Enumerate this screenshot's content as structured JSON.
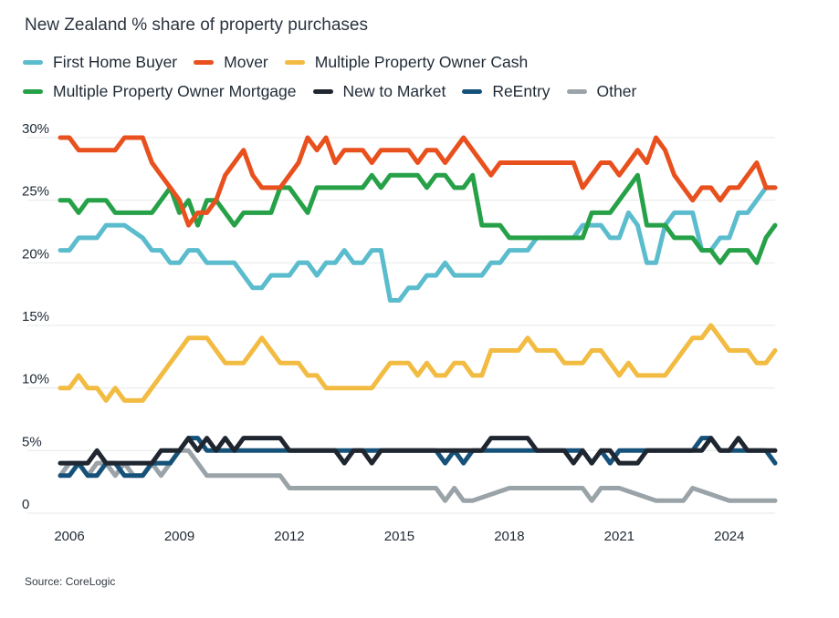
{
  "title": "New Zealand % share of property purchases",
  "source": "Source: CoreLogic",
  "chart_data": {
    "type": "line",
    "title": "New Zealand % share of property purchases",
    "xlabel": "",
    "ylabel": "",
    "x_range": [
      2005.75,
      2025.25
    ],
    "ylim": [
      0,
      30
    ],
    "yticks": [
      0,
      5,
      10,
      15,
      20,
      25,
      30
    ],
    "ytick_labels": [
      "0",
      "5%",
      "10%",
      "15%",
      "20%",
      "25%",
      "30%"
    ],
    "xticks": [
      2006,
      2009,
      2012,
      2015,
      2018,
      2021,
      2024
    ],
    "xtick_labels": [
      "2006",
      "2009",
      "2012",
      "2015",
      "2018",
      "2021",
      "2024"
    ],
    "grid": "horizontal",
    "legend_position": "top-left",
    "series": [
      {
        "name": "First Home Buyer",
        "color": "#5bbccd",
        "x": [
          2005.75,
          2006,
          2006.25,
          2006.75,
          2007,
          2007.5,
          2008,
          2008.25,
          2008.5,
          2008.75,
          2009,
          2009.25,
          2009.5,
          2009.75,
          2010,
          2010.5,
          2011,
          2011.25,
          2011.5,
          2011.75,
          2012,
          2012.25,
          2012.5,
          2012.75,
          2013,
          2013.25,
          2013.5,
          2013.75,
          2014,
          2014.25,
          2014.5,
          2014.75,
          2015,
          2015.25,
          2015.5,
          2015.75,
          2016,
          2016.25,
          2016.5,
          2016.75,
          2017,
          2017.25,
          2017.5,
          2017.75,
          2018,
          2018.25,
          2018.5,
          2018.75,
          2019,
          2019.25,
          2019.5,
          2019.75,
          2020,
          2020.25,
          2020.5,
          2020.75,
          2021,
          2021.25,
          2021.5,
          2021.75,
          2022,
          2022.25,
          2022.5,
          2022.75,
          2023,
          2023.25,
          2023.5,
          2023.75,
          2024,
          2024.25,
          2024.5,
          2024.75,
          2025,
          2025.25
        ],
        "values": [
          21,
          21,
          22,
          22,
          23,
          23,
          22,
          21,
          21,
          20,
          20,
          21,
          21,
          20,
          20,
          20,
          18,
          18,
          19,
          19,
          19,
          20,
          20,
          19,
          20,
          20,
          21,
          20,
          20,
          21,
          21,
          17,
          17,
          18,
          18,
          19,
          19,
          20,
          19,
          19,
          19,
          19,
          20,
          20,
          21,
          21,
          21,
          22,
          22,
          22,
          22,
          22,
          23,
          23,
          23,
          22,
          22,
          24,
          23,
          20,
          20,
          23,
          24,
          24,
          24,
          21,
          21,
          22,
          22,
          24,
          24,
          25,
          26,
          26
        ]
      },
      {
        "name": "Mover",
        "color": "#e8501e",
        "x": [
          2005.75,
          2006,
          2006.25,
          2006.5,
          2006.75,
          2007,
          2007.25,
          2007.5,
          2007.75,
          2008,
          2008.25,
          2008.5,
          2008.75,
          2009,
          2009.25,
          2009.5,
          2009.75,
          2010,
          2010.25,
          2010.5,
          2010.75,
          2011,
          2011.25,
          2011.5,
          2011.75,
          2012,
          2012.25,
          2012.5,
          2012.75,
          2013,
          2013.25,
          2013.5,
          2013.75,
          2014,
          2014.25,
          2014.5,
          2014.75,
          2015,
          2015.25,
          2015.5,
          2015.75,
          2016,
          2016.25,
          2016.5,
          2016.75,
          2017,
          2017.25,
          2017.5,
          2017.75,
          2018,
          2018.25,
          2018.5,
          2018.75,
          2019,
          2019.25,
          2019.5,
          2019.75,
          2020,
          2020.25,
          2020.5,
          2020.75,
          2021,
          2021.25,
          2021.5,
          2021.75,
          2022,
          2022.25,
          2022.5,
          2022.75,
          2023,
          2023.25,
          2023.5,
          2023.75,
          2024,
          2024.25,
          2024.5,
          2024.75,
          2025,
          2025.25
        ],
        "values": [
          30,
          30,
          29,
          29,
          29,
          29,
          29,
          30,
          30,
          30,
          28,
          27,
          26,
          25,
          23,
          24,
          24,
          25,
          27,
          28,
          29,
          27,
          26,
          26,
          26,
          27,
          28,
          30,
          29,
          30,
          28,
          29,
          29,
          29,
          28,
          29,
          29,
          29,
          29,
          28,
          29,
          29,
          28,
          29,
          30,
          29,
          28,
          27,
          28,
          28,
          28,
          28,
          28,
          28,
          28,
          28,
          28,
          26,
          27,
          28,
          28,
          27,
          28,
          29,
          28,
          30,
          29,
          27,
          26,
          25,
          26,
          26,
          25,
          26,
          26,
          27,
          28,
          26,
          26
        ]
      },
      {
        "name": "Multiple Property Owner Cash",
        "color": "#f2bb42",
        "x": [
          2005.75,
          2006,
          2006.25,
          2006.5,
          2006.75,
          2007,
          2007.25,
          2007.5,
          2007.75,
          2008,
          2008.5,
          2009,
          2009.25,
          2009.5,
          2009.75,
          2010,
          2010.25,
          2010.5,
          2010.75,
          2011,
          2011.25,
          2011.5,
          2011.75,
          2012,
          2012.25,
          2012.5,
          2012.75,
          2013,
          2013.5,
          2014,
          2014.25,
          2014.5,
          2014.75,
          2015,
          2015.25,
          2015.5,
          2015.75,
          2016,
          2016.25,
          2016.5,
          2016.75,
          2017,
          2017.25,
          2017.5,
          2017.75,
          2018,
          2018.25,
          2018.5,
          2018.75,
          2019,
          2019.25,
          2019.5,
          2019.75,
          2020,
          2020.25,
          2020.5,
          2020.75,
          2021,
          2021.25,
          2021.5,
          2021.75,
          2022,
          2022.25,
          2022.5,
          2022.75,
          2023,
          2023.25,
          2023.5,
          2023.75,
          2024,
          2024.25,
          2024.5,
          2024.75,
          2025,
          2025.25
        ],
        "values": [
          10,
          10,
          11,
          10,
          10,
          9,
          10,
          9,
          9,
          9,
          11,
          13,
          14,
          14,
          14,
          13,
          12,
          12,
          12,
          13,
          14,
          13,
          12,
          12,
          12,
          11,
          11,
          10,
          10,
          10,
          10,
          11,
          12,
          12,
          12,
          11,
          12,
          11,
          11,
          12,
          12,
          11,
          11,
          13,
          13,
          13,
          13,
          14,
          13,
          13,
          13,
          12,
          12,
          12,
          13,
          13,
          12,
          11,
          12,
          11,
          11,
          11,
          11,
          12,
          13,
          14,
          14,
          15,
          14,
          13,
          13,
          13,
          12,
          12,
          13
        ]
      },
      {
        "name": "Multiple Property Owner Mortgage",
        "color": "#26a148",
        "x": [
          2005.75,
          2006,
          2006.25,
          2006.5,
          2007,
          2007.25,
          2007.5,
          2008,
          2008.25,
          2008.5,
          2008.75,
          2009,
          2009.25,
          2009.5,
          2009.75,
          2010,
          2010.25,
          2010.5,
          2010.75,
          2011,
          2011.25,
          2011.5,
          2011.75,
          2012,
          2012.25,
          2012.5,
          2012.75,
          2013,
          2013.5,
          2013.75,
          2014,
          2014.25,
          2014.5,
          2014.75,
          2015,
          2015.25,
          2015.5,
          2015.75,
          2016,
          2016.25,
          2016.5,
          2016.75,
          2017,
          2017.25,
          2017.5,
          2017.75,
          2018,
          2018.25,
          2018.5,
          2018.75,
          2019,
          2019.5,
          2020,
          2020.25,
          2020.5,
          2020.75,
          2021,
          2021.25,
          2021.5,
          2021.75,
          2022,
          2022.25,
          2022.5,
          2022.75,
          2023,
          2023.25,
          2023.5,
          2023.75,
          2024,
          2024.25,
          2024.5,
          2024.75,
          2025,
          2025.25
        ],
        "values": [
          25,
          25,
          24,
          25,
          25,
          24,
          24,
          24,
          24,
          25,
          26,
          24,
          25,
          23,
          25,
          25,
          24,
          23,
          24,
          24,
          24,
          24,
          26,
          26,
          25,
          24,
          26,
          26,
          26,
          26,
          26,
          27,
          26,
          27,
          27,
          27,
          27,
          26,
          27,
          27,
          26,
          26,
          27,
          23,
          23,
          23,
          22,
          22,
          22,
          22,
          22,
          22,
          22,
          24,
          24,
          24,
          25,
          26,
          27,
          23,
          23,
          23,
          22,
          22,
          22,
          21,
          21,
          20,
          21,
          21,
          21,
          20,
          22,
          23
        ]
      },
      {
        "name": "New to Market",
        "color": "#1f2630",
        "x": [
          2005.75,
          2006,
          2006.5,
          2006.75,
          2007,
          2007.25,
          2007.5,
          2007.75,
          2008,
          2008.25,
          2008.5,
          2008.75,
          2009,
          2009.25,
          2009.5,
          2009.75,
          2010,
          2010.25,
          2010.5,
          2010.75,
          2011,
          2011.25,
          2011.5,
          2011.75,
          2012,
          2012.5,
          2013,
          2013.25,
          2013.5,
          2013.75,
          2014,
          2014.25,
          2014.5,
          2015,
          2016,
          2016.5,
          2017,
          2017.25,
          2017.5,
          2017.75,
          2018,
          2018.25,
          2018.5,
          2018.75,
          2019,
          2019.25,
          2019.5,
          2019.75,
          2020,
          2020.25,
          2020.5,
          2020.75,
          2021,
          2021.25,
          2021.5,
          2021.75,
          2022,
          2022.5,
          2023,
          2023.25,
          2023.5,
          2023.75,
          2024,
          2024.25,
          2024.5,
          2025,
          2025.25
        ],
        "values": [
          4,
          4,
          4,
          5,
          4,
          4,
          4,
          4,
          4,
          4,
          5,
          5,
          5,
          6,
          5,
          6,
          5,
          6,
          5,
          6,
          6,
          6,
          6,
          6,
          5,
          5,
          5,
          5,
          4,
          5,
          5,
          4,
          5,
          5,
          5,
          5,
          5,
          5,
          6,
          6,
          6,
          6,
          6,
          5,
          5,
          5,
          5,
          4,
          5,
          4,
          5,
          5,
          4,
          4,
          4,
          5,
          5,
          5,
          5,
          5,
          6,
          5,
          5,
          6,
          5,
          5,
          5
        ]
      },
      {
        "name": "ReEntry",
        "color": "#155179",
        "x": [
          2005.75,
          2006,
          2006.25,
          2006.5,
          2006.75,
          2007,
          2007.25,
          2007.5,
          2007.75,
          2008,
          2008.25,
          2008.5,
          2008.75,
          2009,
          2009.25,
          2009.5,
          2009.75,
          2010,
          2011,
          2012,
          2013,
          2014,
          2015,
          2016,
          2016.25,
          2016.5,
          2016.75,
          2017,
          2018,
          2019,
          2020,
          2020.25,
          2020.5,
          2020.75,
          2021,
          2022,
          2022.5,
          2023,
          2023.25,
          2023.5,
          2023.75,
          2024,
          2024.5,
          2025,
          2025.25
        ],
        "values": [
          3,
          3,
          4,
          3,
          3,
          4,
          4,
          3,
          3,
          3,
          4,
          4,
          4,
          5,
          6,
          6,
          5,
          5,
          5,
          5,
          5,
          5,
          5,
          5,
          4,
          5,
          4,
          5,
          5,
          5,
          5,
          4,
          5,
          4,
          5,
          5,
          5,
          5,
          6,
          6,
          5,
          5,
          5,
          5,
          4
        ]
      },
      {
        "name": "Other",
        "color": "#9aa3a8",
        "x": [
          2005.75,
          2006,
          2006.25,
          2006.5,
          2006.75,
          2007,
          2007.25,
          2007.5,
          2007.75,
          2008,
          2008.25,
          2008.5,
          2008.75,
          2009,
          2009.25,
          2009.5,
          2009.75,
          2010,
          2011,
          2011.25,
          2011.5,
          2011.75,
          2012,
          2013,
          2014,
          2015,
          2015.5,
          2015.75,
          2016,
          2016.25,
          2016.5,
          2016.75,
          2017,
          2018,
          2019,
          2019.25,
          2019.5,
          2019.75,
          2020,
          2020.25,
          2020.5,
          2020.75,
          2021,
          2022,
          2022.5,
          2022.75,
          2023,
          2024,
          2025,
          2025.25
        ],
        "values": [
          3,
          4,
          4,
          3,
          4,
          4,
          3,
          4,
          3,
          3,
          4,
          3,
          4,
          5,
          5,
          4,
          3,
          3,
          3,
          3,
          3,
          3,
          2,
          2,
          2,
          2,
          2,
          2,
          2,
          1,
          2,
          1,
          1,
          2,
          2,
          2,
          2,
          2,
          2,
          1,
          2,
          2,
          2,
          1,
          1,
          1,
          2,
          1,
          1,
          1
        ]
      }
    ]
  }
}
